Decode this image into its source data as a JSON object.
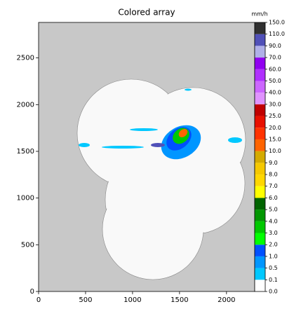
{
  "chart_data": {
    "type": "raster",
    "title": "Colored array",
    "xlim": [
      0,
      2300
    ],
    "ylim": [
      0,
      2880
    ],
    "xticks": [
      0,
      500,
      1000,
      1500,
      2000
    ],
    "yticks": [
      0,
      500,
      1000,
      1500,
      2000,
      2500
    ],
    "background": "#c8c8c8",
    "colorbar": {
      "label": "mm/h",
      "ticks": [
        {
          "value": 0,
          "label": "0.0"
        },
        {
          "value": 0.1,
          "label": "0.1"
        },
        {
          "value": 0.5,
          "label": "0.5"
        },
        {
          "value": 1,
          "label": "1.0"
        },
        {
          "value": 2,
          "label": "2.0"
        },
        {
          "value": 3,
          "label": "3.0"
        },
        {
          "value": 4,
          "label": "4.0"
        },
        {
          "value": 5,
          "label": "5.0"
        },
        {
          "value": 6,
          "label": "6.0"
        },
        {
          "value": 7,
          "label": "7.0"
        },
        {
          "value": 8,
          "label": "8.0"
        },
        {
          "value": 9,
          "label": "9.0"
        },
        {
          "value": 10,
          "label": "10.0"
        },
        {
          "value": 15,
          "label": "15.0"
        },
        {
          "value": 20,
          "label": "20.0"
        },
        {
          "value": 25,
          "label": "25.0"
        },
        {
          "value": 30,
          "label": "30.0"
        },
        {
          "value": 40,
          "label": "40.0"
        },
        {
          "value": 50,
          "label": "50.0"
        },
        {
          "value": 60,
          "label": "60.0"
        },
        {
          "value": 70,
          "label": "70.0"
        },
        {
          "value": 90,
          "label": "90.0"
        },
        {
          "value": 110,
          "label": "110.0"
        },
        {
          "value": 150,
          "label": "150.0"
        }
      ],
      "colors": [
        "#ffffff",
        "#00c8ff",
        "#0096ff",
        "#0050ff",
        "#00ff00",
        "#00c800",
        "#009600",
        "#006400",
        "#ffff00",
        "#ffd700",
        "#f5c800",
        "#d4aa00",
        "#ff6400",
        "#ff3200",
        "#e81000",
        "#c00000",
        "#e093ff",
        "#cc66ff",
        "#b030ff",
        "#9000f0",
        "#b0b0e8",
        "#5050b8",
        "#303030"
      ]
    }
  }
}
